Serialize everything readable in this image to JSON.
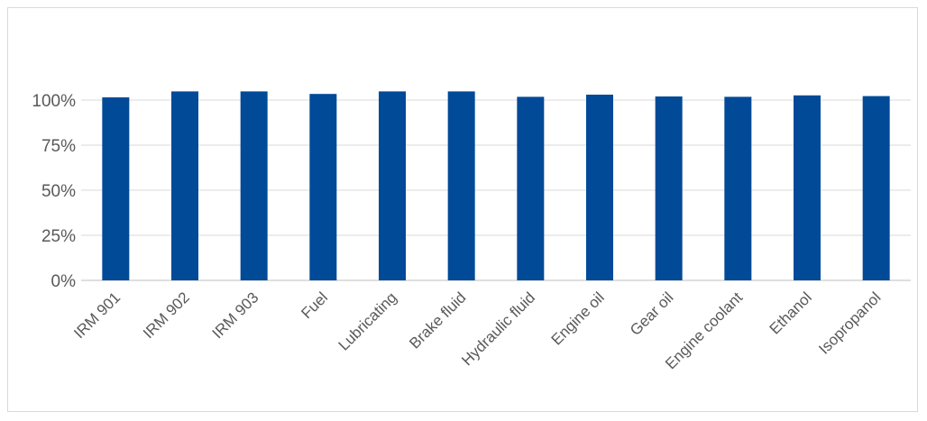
{
  "chart_data": {
    "type": "bar",
    "title": "",
    "xlabel": "",
    "ylabel": "",
    "categories": [
      "IRM 901",
      "IRM 902",
      "IRM 903",
      "Fuel",
      "Lubricating",
      "Brake fluid",
      "Hydraulic fluid",
      "Engine oil",
      "Gear oil",
      "Engine coolant",
      "Ethanol",
      "Isopropanol"
    ],
    "values": [
      101.5,
      104.8,
      104.8,
      103.4,
      104.8,
      104.8,
      101.8,
      103.0,
      102.0,
      101.8,
      102.6,
      102.2
    ],
    "ylim": [
      0,
      125
    ],
    "yticks": [
      0,
      25,
      50,
      75,
      100
    ],
    "ytick_labels": [
      "0%",
      "25%",
      "50%",
      "75%",
      "100%"
    ],
    "grid": true,
    "legend": "none",
    "bar_color": "#004a98"
  }
}
